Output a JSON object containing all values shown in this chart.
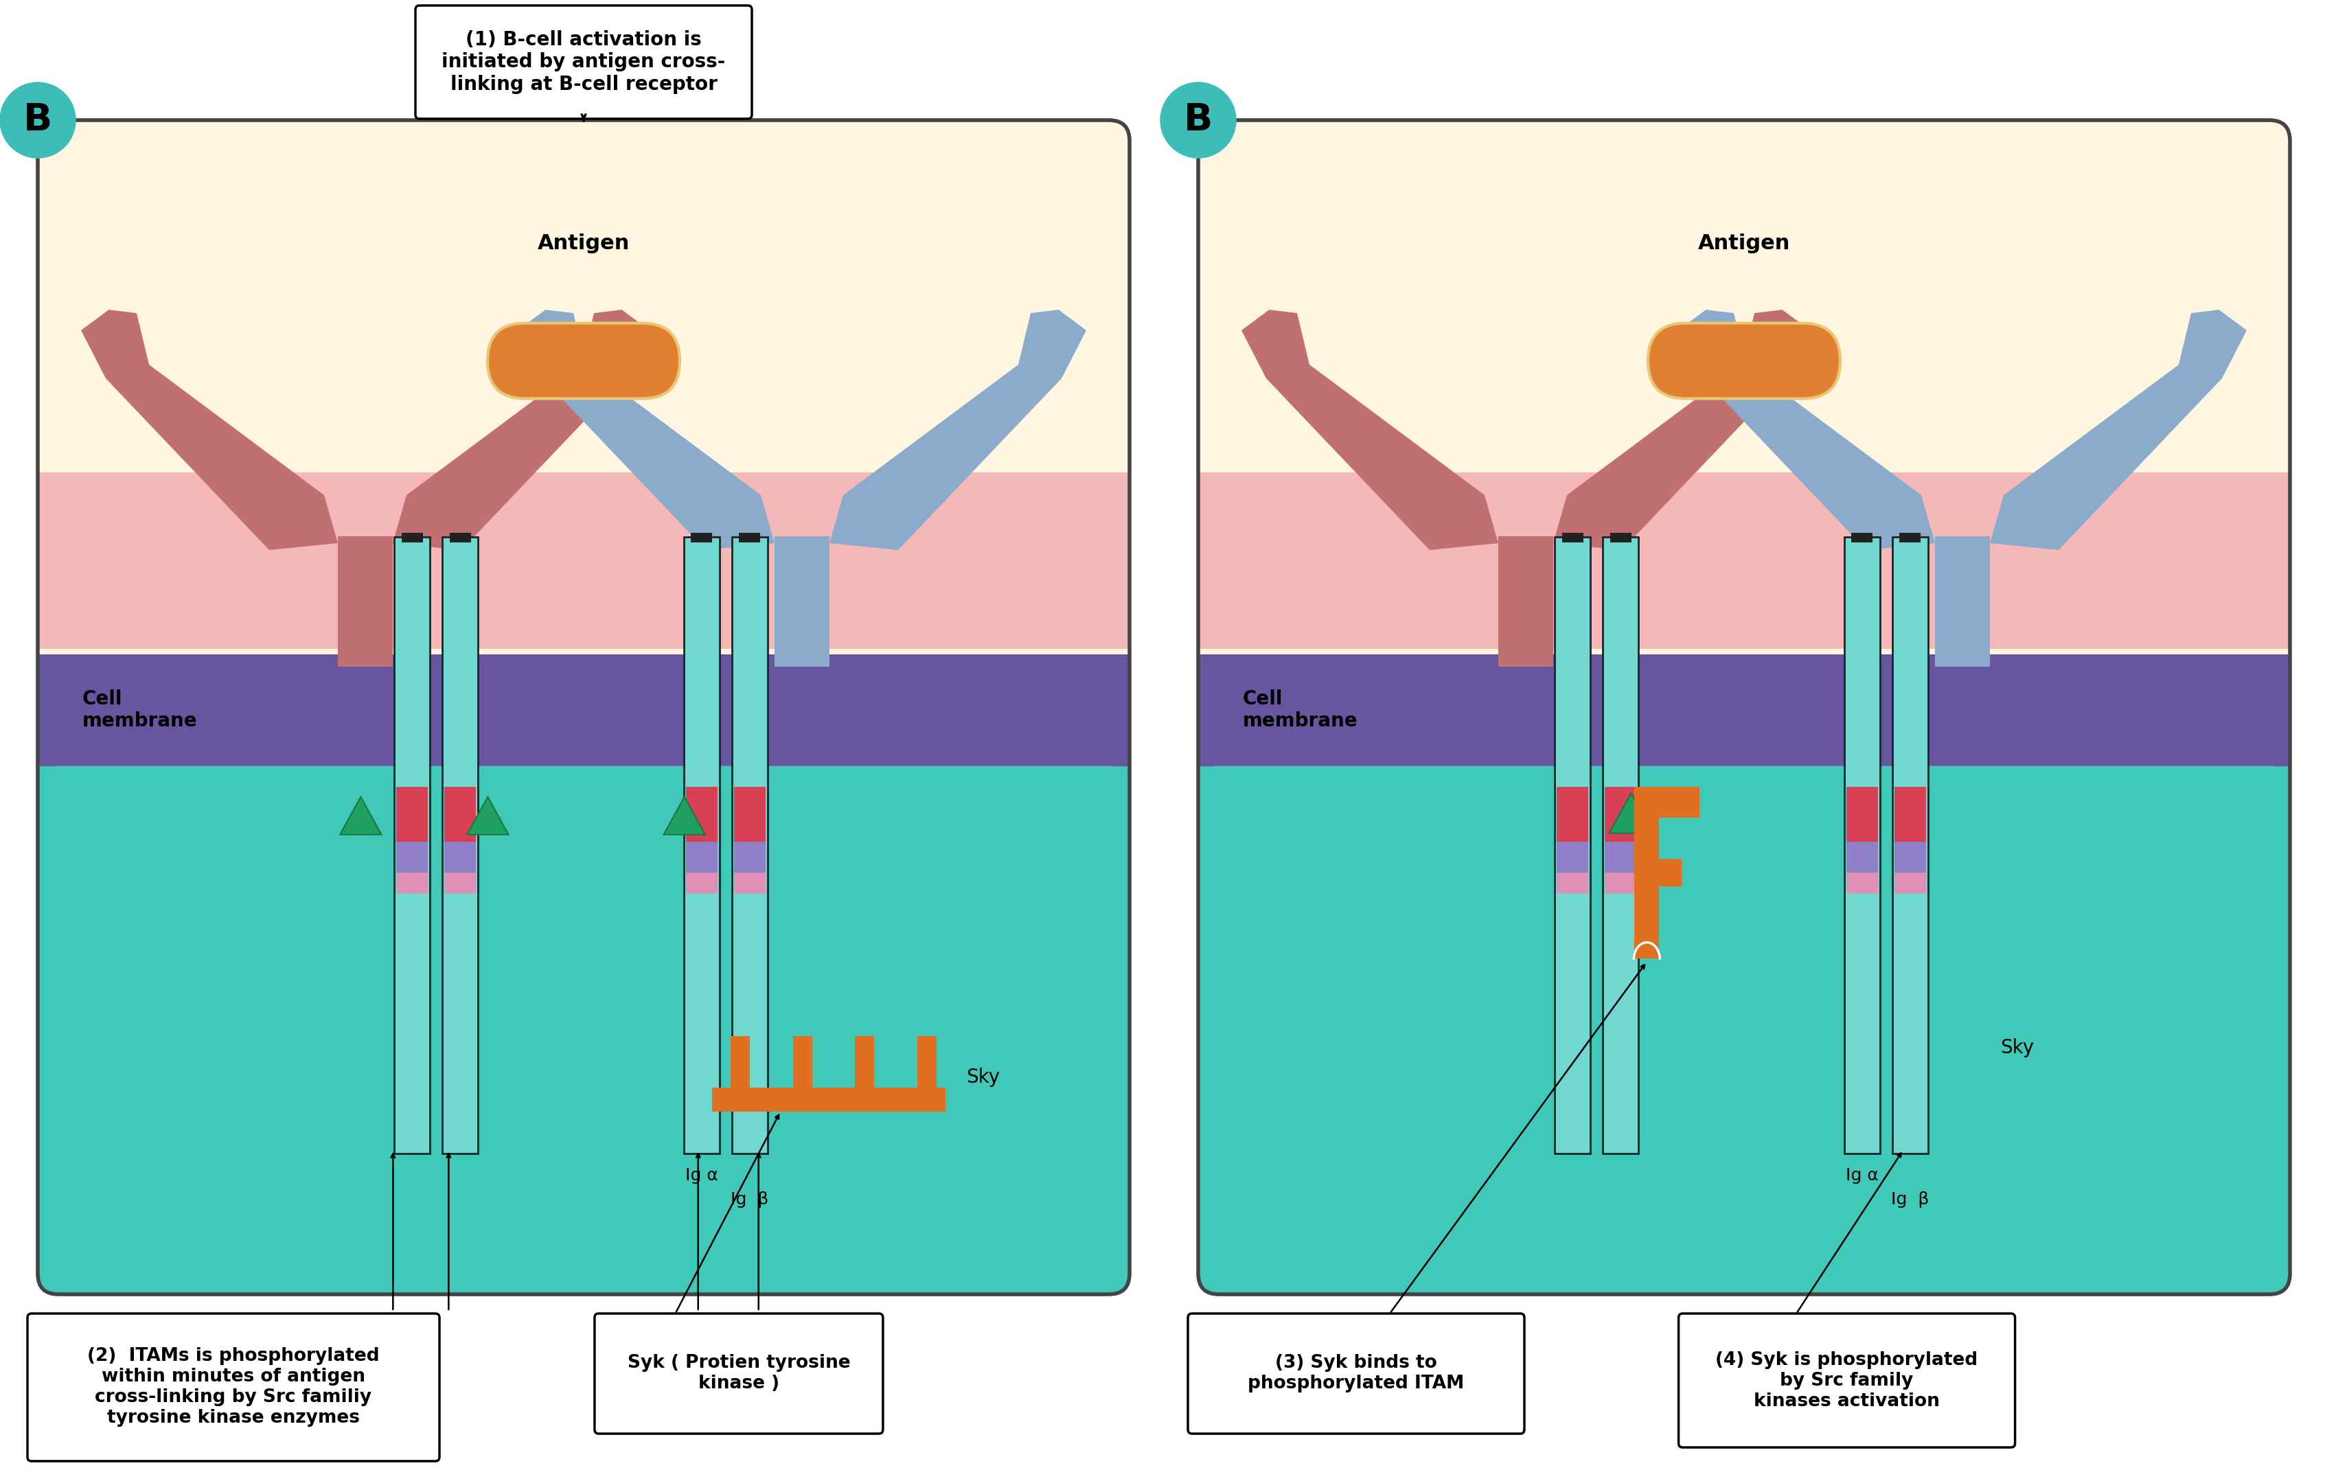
{
  "fig_width": 33.86,
  "fig_height": 21.38,
  "bg_color": "#ffffff",
  "panel1_title": "(1) B-cell activation is\ninitiated by antigen cross-\nlinking at B-cell receptor",
  "panel2_label1": "(3) Syk binds to\nphosphorylated ITAM",
  "panel2_label2": "(4) Syk is phosphorylated\nby Src family\nkinases activation",
  "panel1_label2": "(2)  ITAMs is phosphorylated\nwithin minutes of antigen\ncross-linking by Src familiy\ntyrosine kinase enzymes",
  "panel1_label3": "Syk ( Protien tyrosine\nkinase )",
  "antigen_label": "Antigen",
  "cell_membrane_label": "Cell\nmembrane",
  "ig_alpha_label": "Ig α",
  "ig_beta_label": "Ig  β",
  "sky_label": "Sky",
  "cream_color": "#fff5e0",
  "pink_color": "#f5b8b8",
  "purple_color": "#6855a0",
  "teal_color": "#40c8b8",
  "ab_left_color": "#c07070",
  "ab_right_color": "#8aabca",
  "antigen_color": "#e08030",
  "col_teal": "#70d8d0",
  "itam_red": "#d84055",
  "itam_pink": "#e090b5",
  "itam_purple": "#9080c8",
  "tri_green": "#20a060",
  "syk_orange": "#e07020",
  "teal_circle": "#3dbdb8",
  "panel_edge": "#444444"
}
